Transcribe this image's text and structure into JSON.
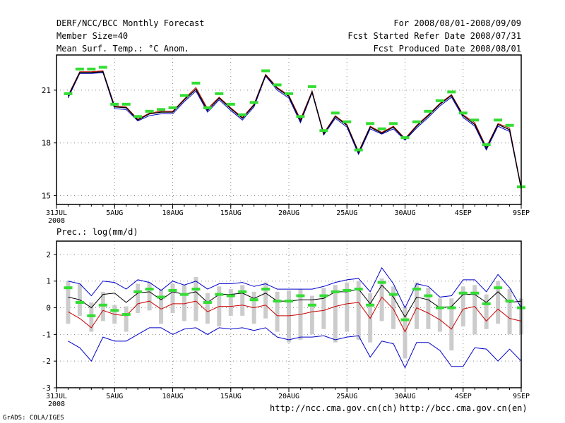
{
  "header": {
    "title": "DERF/NCC/BCC Monthly Forecast",
    "member_size": "Member Size=40",
    "variable": "Mean Surf. Temp.: °C Anom.",
    "period": "For 2008/08/01-2008/09/09",
    "fcst_started": "Fcst Started Refer Date 2008/07/31",
    "fcst_produced": "Fcst Produced Date 2008/08/01"
  },
  "footer": {
    "url_ch": "http://ncc.cma.gov.cn(ch)",
    "url_en": "http://bcc.cma.gov.cn(en)",
    "credit": "GrADS: COLA/IGES"
  },
  "colors": {
    "ensemble_mean": "#000000",
    "member_red": "#cc0000",
    "member_blue": "#0000cc",
    "spread_box": "#cccccc",
    "marker": "#33dd33",
    "grid": "#888888"
  },
  "chart_data": [
    {
      "type": "line",
      "title": "Mean Surf. Temp.: °C Anom.",
      "x_tick_labels": [
        "31JUL",
        "5AUG",
        "10AUG",
        "15AUG",
        "20AUG",
        "25AUG",
        "30AUG",
        "4SEP",
        "9SEP"
      ],
      "x_tick_days": [
        0,
        5,
        10,
        15,
        20,
        25,
        30,
        35,
        40
      ],
      "x_year_label": "2008",
      "xlim": [
        0,
        40
      ],
      "ylim": [
        14.5,
        23.0
      ],
      "y_ticks": [
        15,
        18,
        21
      ],
      "grid": true,
      "days": [
        1,
        2,
        3,
        4,
        5,
        6,
        7,
        8,
        9,
        10,
        11,
        12,
        13,
        14,
        15,
        16,
        17,
        18,
        19,
        20,
        21,
        22,
        23,
        24,
        25,
        26,
        27,
        28,
        29,
        30,
        31,
        32,
        33,
        34,
        35,
        36,
        37,
        38,
        39,
        40
      ],
      "markers": [
        20.8,
        22.2,
        22.2,
        22.3,
        20.2,
        20.2,
        19.5,
        19.8,
        19.9,
        20.0,
        20.7,
        21.4,
        20.0,
        20.8,
        20.2,
        19.6,
        20.3,
        22.1,
        21.3,
        20.8,
        19.5,
        21.2,
        18.7,
        19.7,
        19.2,
        17.6,
        19.1,
        18.8,
        19.1,
        18.3,
        19.2,
        19.8,
        20.4,
        20.9,
        19.7,
        19.3,
        17.9,
        19.3,
        19.0,
        15.5
      ],
      "series": [
        {
          "name": "red",
          "values": [
            20.7,
            22.05,
            22.05,
            22.1,
            20.1,
            20.05,
            19.35,
            19.7,
            19.8,
            19.8,
            20.5,
            21.15,
            19.95,
            20.6,
            20.0,
            19.45,
            20.2,
            21.9,
            21.15,
            20.7,
            19.35,
            20.95,
            18.55,
            19.55,
            19.05,
            17.5,
            18.95,
            18.6,
            18.95,
            18.25,
            19.0,
            19.6,
            20.25,
            20.75,
            19.6,
            19.15,
            17.75,
            19.1,
            18.85,
            15.45
          ]
        },
        {
          "name": "blue",
          "values": [
            20.55,
            21.95,
            21.95,
            22.0,
            19.95,
            19.9,
            19.25,
            19.55,
            19.65,
            19.65,
            20.35,
            20.95,
            19.75,
            20.45,
            19.85,
            19.3,
            20.05,
            21.8,
            21.0,
            20.55,
            19.15,
            20.85,
            18.45,
            19.4,
            18.9,
            17.35,
            18.8,
            18.5,
            18.8,
            18.15,
            18.85,
            19.45,
            20.1,
            20.6,
            19.45,
            18.95,
            17.6,
            18.95,
            18.65,
            15.4
          ]
        },
        {
          "name": "black",
          "values": [
            20.65,
            22.0,
            22.0,
            22.05,
            20.05,
            20.0,
            19.3,
            19.65,
            19.75,
            19.75,
            20.45,
            21.05,
            19.85,
            20.55,
            19.95,
            19.4,
            20.15,
            21.85,
            21.1,
            20.65,
            19.25,
            20.9,
            18.5,
            19.5,
            19.0,
            17.45,
            18.9,
            18.55,
            18.9,
            18.2,
            18.95,
            19.55,
            20.2,
            20.7,
            19.55,
            19.05,
            17.7,
            19.05,
            18.75,
            15.4
          ]
        }
      ]
    },
    {
      "type": "line",
      "title": "Prec.: log(mm/d)",
      "x_tick_labels": [
        "31JUL",
        "5AUG",
        "10AUG",
        "15AUG",
        "20AUG",
        "25AUG",
        "30AUG",
        "4SEP",
        "9SEP"
      ],
      "x_tick_days": [
        0,
        5,
        10,
        15,
        20,
        25,
        30,
        35,
        40
      ],
      "x_year_label": "2008",
      "xlim": [
        0,
        40
      ],
      "ylim": [
        -3,
        2.5
      ],
      "y_ticks": [
        -3,
        -2,
        -1,
        0,
        1,
        2
      ],
      "grid": true,
      "days": [
        1,
        2,
        3,
        4,
        5,
        6,
        7,
        8,
        9,
        10,
        11,
        12,
        13,
        14,
        15,
        16,
        17,
        18,
        19,
        20,
        21,
        22,
        23,
        24,
        25,
        26,
        27,
        28,
        29,
        30,
        31,
        32,
        33,
        34,
        35,
        36,
        37,
        38,
        39,
        40
      ],
      "markers": [
        0.75,
        0.2,
        -0.3,
        0.1,
        -0.1,
        -0.25,
        0.6,
        0.7,
        0.4,
        0.65,
        0.5,
        0.7,
        0.2,
        0.5,
        0.45,
        0.6,
        0.3,
        0.7,
        0.25,
        0.25,
        0.45,
        0.1,
        0.45,
        0.6,
        0.65,
        0.7,
        0.1,
        0.95,
        0.5,
        -0.45,
        0.7,
        0.45,
        0.0,
        0.0,
        0.55,
        0.55,
        0.15,
        0.75,
        0.25,
        0.0
      ],
      "box_top": [
        1.0,
        0.9,
        0.2,
        0.6,
        0.1,
        0.05,
        0.9,
        0.95,
        0.7,
        0.9,
        0.85,
        1.15,
        0.55,
        0.8,
        0.7,
        0.85,
        0.6,
        0.95,
        0.6,
        0.65,
        0.7,
        0.45,
        0.75,
        0.85,
        0.95,
        1.0,
        0.55,
        1.1,
        0.8,
        0.05,
        0.95,
        0.75,
        0.35,
        0.35,
        0.8,
        0.85,
        0.5,
        1.0,
        0.7,
        0.35
      ],
      "box_bottom": [
        -0.6,
        -0.3,
        -0.9,
        -0.5,
        -0.6,
        -0.9,
        -0.2,
        -0.1,
        -0.6,
        -0.2,
        -0.5,
        -0.5,
        -0.6,
        -0.7,
        -0.3,
        -0.3,
        -0.6,
        -0.4,
        -0.9,
        -1.3,
        -1.2,
        -1.0,
        -0.8,
        -1.3,
        -0.9,
        -1.2,
        -1.3,
        -0.5,
        -0.8,
        -1.9,
        -0.8,
        -0.8,
        -0.9,
        -1.6,
        -0.7,
        -1.0,
        -0.8,
        -0.6,
        -1.0,
        -1.0
      ],
      "series": [
        {
          "name": "black_mean",
          "values": [
            0.4,
            0.3,
            0.0,
            0.5,
            0.55,
            0.2,
            0.55,
            0.6,
            0.3,
            0.6,
            0.5,
            0.6,
            0.2,
            0.5,
            0.5,
            0.55,
            0.35,
            0.55,
            0.25,
            0.25,
            0.3,
            0.3,
            0.35,
            0.6,
            0.6,
            0.7,
            0.15,
            0.85,
            0.4,
            -0.35,
            0.4,
            0.3,
            0.0,
            0.05,
            0.5,
            0.5,
            0.2,
            0.6,
            0.2,
            0.25
          ]
        },
        {
          "name": "red_member",
          "values": [
            -0.15,
            -0.4,
            -0.75,
            -0.1,
            -0.25,
            -0.3,
            0.15,
            0.25,
            -0.05,
            0.15,
            0.15,
            0.25,
            -0.15,
            0.05,
            0.05,
            0.1,
            0.0,
            0.1,
            -0.3,
            -0.3,
            -0.25,
            -0.15,
            -0.1,
            0.05,
            0.15,
            0.2,
            -0.4,
            0.4,
            -0.05,
            -0.9,
            0.0,
            -0.2,
            -0.45,
            -0.8,
            -0.05,
            0.05,
            -0.5,
            -0.05,
            -0.4,
            -0.5
          ]
        },
        {
          "name": "blue_upper",
          "values": [
            1.0,
            0.9,
            0.45,
            1.0,
            0.95,
            0.7,
            1.05,
            0.95,
            0.65,
            1.0,
            0.85,
            1.0,
            0.7,
            0.9,
            0.9,
            0.95,
            0.8,
            0.9,
            0.7,
            0.7,
            0.7,
            0.7,
            0.8,
            0.95,
            1.05,
            1.1,
            0.6,
            1.5,
            0.9,
            0.0,
            0.9,
            0.8,
            0.4,
            0.45,
            1.05,
            1.05,
            0.6,
            1.25,
            0.75,
            0.0
          ]
        },
        {
          "name": "blue_lower",
          "values": [
            -1.25,
            -1.5,
            -2.0,
            -1.1,
            -1.25,
            -1.25,
            -1.0,
            -0.75,
            -0.75,
            -1.0,
            -0.8,
            -0.75,
            -1.0,
            -0.75,
            -0.8,
            -0.75,
            -0.85,
            -0.75,
            -1.1,
            -1.2,
            -1.1,
            -1.1,
            -1.05,
            -1.2,
            -1.1,
            -1.05,
            -1.85,
            -1.25,
            -1.35,
            -2.25,
            -1.3,
            -1.3,
            -1.6,
            -2.2,
            -2.2,
            -1.5,
            -1.55,
            -2.0,
            -1.55,
            -2.0
          ]
        }
      ]
    }
  ]
}
